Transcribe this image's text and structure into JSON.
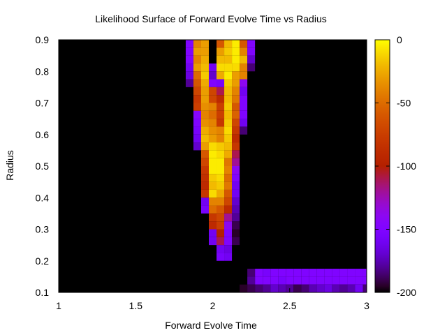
{
  "chart_data": {
    "type": "heatmap",
    "title": "Likelihood Surface of Forward Evolve Time vs Radius",
    "xlabel": "Forward Evolve Time",
    "ylabel": "Radius",
    "xlim": [
      1,
      3
    ],
    "ylim": [
      0.1,
      0.9
    ],
    "xticks": [
      1,
      1.5,
      2,
      2.5,
      3
    ],
    "xtick_labels": [
      "1",
      "1.5",
      "2",
      "2.5",
      "3"
    ],
    "yticks": [
      0.1,
      0.2,
      0.3,
      0.4,
      0.5,
      0.6,
      0.7,
      0.8,
      0.9
    ],
    "ytick_labels": [
      "0.1",
      "0.2",
      "0.3",
      "0.4",
      "0.5",
      "0.6",
      "0.7",
      "0.8",
      "0.9"
    ],
    "colorbar": {
      "range": [
        -200,
        0
      ],
      "ticks": [
        0,
        -50,
        -100,
        -150,
        -200
      ],
      "tick_labels": [
        "0",
        "-50",
        "-100",
        "-150",
        "-200"
      ],
      "palette": "gnuplot-pm3d"
    },
    "grid": false,
    "x_step": 0.05,
    "y_step": 0.025,
    "background_value": -200,
    "nonzero_cells": [
      {
        "x": 1.85,
        "values": [
          null,
          null,
          null,
          null,
          null,
          null,
          null,
          null,
          null,
          null,
          null,
          null,
          null,
          null,
          null,
          null,
          null,
          null,
          null,
          null,
          null,
          null,
          null,
          null,
          null,
          -185,
          -165,
          -162,
          -145,
          -130
        ]
      },
      {
        "x": 1.875,
        "values": [
          null,
          null,
          null,
          null,
          null,
          null,
          null,
          null,
          null,
          null,
          null,
          null,
          null,
          null,
          null,
          null,
          null,
          null,
          -170,
          -160,
          -150,
          null,
          null,
          null,
          null,
          null,
          null,
          null,
          null,
          null
        ]
      },
      {
        "x": 1.9,
        "values": [
          null,
          null,
          null,
          null,
          null,
          null,
          null,
          null,
          null,
          null,
          null,
          null,
          null,
          null,
          null,
          null,
          null,
          null,
          null,
          null,
          null,
          null,
          null,
          null,
          null,
          null,
          null,
          null,
          null,
          null
        ]
      }
    ],
    "z_by_row": [
      {
        "y": 0.8875,
        "x": [
          1.85,
          1.9,
          1.95,
          2.05,
          2.1,
          2.15,
          2.2,
          2.25
        ],
        "z": [
          -150,
          -40,
          -30,
          -60,
          -20,
          -5,
          -60,
          -150
        ]
      },
      {
        "y": 0.8625,
        "x": [
          1.85,
          1.9,
          1.95,
          2.05,
          2.1,
          2.15,
          2.2,
          2.25
        ],
        "z": [
          -150,
          -30,
          -30,
          -30,
          -15,
          -5,
          -40,
          -150
        ]
      },
      {
        "y": 0.8375,
        "x": [
          1.85,
          1.9,
          1.95,
          2.05,
          2.1,
          2.15,
          2.2,
          2.25
        ],
        "z": [
          -150,
          -40,
          -25,
          -20,
          -20,
          -5,
          -20,
          -170
        ]
      },
      {
        "y": 0.8125,
        "x": [
          1.85,
          1.9,
          1.95,
          2.0,
          2.05,
          2.1,
          2.15,
          2.2,
          2.25
        ],
        "z": [
          -160,
          -30,
          -20,
          -160,
          -10,
          -10,
          -10,
          -40,
          -185
        ]
      },
      {
        "y": 0.7875,
        "x": [
          1.85,
          1.9,
          1.95,
          2.0,
          2.05,
          2.1,
          2.15,
          2.2
        ],
        "z": [
          -165,
          -50,
          -15,
          -170,
          -25,
          -5,
          -30,
          -40
        ]
      },
      {
        "y": 0.7625,
        "x": [
          1.85,
          1.9,
          1.95,
          2.0,
          2.05,
          2.1,
          2.15,
          2.2
        ],
        "z": [
          -180,
          -60,
          -25,
          -150,
          -155,
          -15,
          -30,
          -140
        ]
      },
      {
        "y": 0.7375,
        "x": [
          1.9,
          1.95,
          2.0,
          2.05,
          2.1,
          2.15,
          2.2
        ],
        "z": [
          -70,
          -30,
          -70,
          -110,
          -20,
          -40,
          -160
        ]
      },
      {
        "y": 0.7125,
        "x": [
          1.9,
          1.95,
          2.0,
          2.05,
          2.1,
          2.15,
          2.2
        ],
        "z": [
          -80,
          -30,
          -70,
          -90,
          -20,
          -45,
          -150
        ]
      },
      {
        "y": 0.6875,
        "x": [
          1.9,
          1.95,
          2.0,
          2.05,
          2.1,
          2.15,
          2.2
        ],
        "z": [
          -75,
          -35,
          -40,
          -75,
          -15,
          -60,
          -150
        ]
      },
      {
        "y": 0.6625,
        "x": [
          1.9,
          1.95,
          2.0,
          2.05,
          2.1,
          2.15,
          2.2
        ],
        "z": [
          -145,
          -40,
          -50,
          -75,
          -20,
          -55,
          -150
        ]
      },
      {
        "y": 0.6375,
        "x": [
          1.9,
          1.95,
          2.0,
          2.05,
          2.1,
          2.15,
          2.2
        ],
        "z": [
          -150,
          -35,
          -40,
          -80,
          -15,
          -70,
          -160
        ]
      },
      {
        "y": 0.6125,
        "x": [
          1.9,
          1.95,
          2.0,
          2.05,
          2.1,
          2.15,
          2.2
        ],
        "z": [
          -155,
          -25,
          -35,
          -40,
          -10,
          -80,
          -185
        ]
      },
      {
        "y": 0.5875,
        "x": [
          1.9,
          1.95,
          2.0,
          2.05,
          2.1,
          2.15
        ],
        "z": [
          -160,
          -20,
          -30,
          -40,
          -15,
          -90
        ]
      },
      {
        "y": 0.5625,
        "x": [
          1.9,
          1.95,
          2.0,
          2.05,
          2.1,
          2.15
        ],
        "z": [
          -170,
          -30,
          -10,
          -15,
          -20,
          -80
        ]
      },
      {
        "y": 0.5375,
        "x": [
          1.95,
          2.0,
          2.05,
          2.1,
          2.15
        ],
        "z": [
          -60,
          -5,
          -10,
          -25,
          -110
        ]
      },
      {
        "y": 0.5125,
        "x": [
          1.95,
          2.0,
          2.05,
          2.1,
          2.15
        ],
        "z": [
          -70,
          -5,
          -5,
          -45,
          -120
        ]
      },
      {
        "y": 0.4875,
        "x": [
          1.95,
          2.0,
          2.05,
          2.1,
          2.15
        ],
        "z": [
          -80,
          -5,
          -5,
          -40,
          -140
        ]
      },
      {
        "y": 0.4625,
        "x": [
          1.95,
          2.0,
          2.05,
          2.1,
          2.15
        ],
        "z": [
          -85,
          -15,
          -10,
          -50,
          -150
        ]
      },
      {
        "y": 0.4375,
        "x": [
          1.95,
          2.0,
          2.05,
          2.1,
          2.15
        ],
        "z": [
          -90,
          -20,
          -15,
          -45,
          -160
        ]
      },
      {
        "y": 0.4125,
        "x": [
          1.95,
          2.0,
          2.05,
          2.1,
          2.15
        ],
        "z": [
          -80,
          -10,
          -25,
          -60,
          -160
        ]
      },
      {
        "y": 0.3875,
        "x": [
          1.95,
          2.0,
          2.05,
          2.1,
          2.15
        ],
        "z": [
          -160,
          -40,
          -40,
          -70,
          -170
        ]
      },
      {
        "y": 0.3625,
        "x": [
          1.95,
          2.0,
          2.05,
          2.1,
          2.15
        ],
        "z": [
          -155,
          -50,
          -60,
          -90,
          -175
        ]
      },
      {
        "y": 0.3375,
        "x": [
          2.0,
          2.05,
          2.1,
          2.15
        ],
        "z": [
          -80,
          -70,
          -120,
          -180
        ]
      },
      {
        "y": 0.3125,
        "x": [
          2.0,
          2.05,
          2.1,
          2.15
        ],
        "z": [
          -90,
          -75,
          -140,
          -190
        ]
      },
      {
        "y": 0.2875,
        "x": [
          2.0,
          2.05,
          2.1,
          2.15
        ],
        "z": [
          -160,
          -100,
          -150,
          -195
        ]
      },
      {
        "y": 0.2625,
        "x": [
          2.0,
          2.05,
          2.1,
          2.15
        ],
        "z": [
          -160,
          -110,
          -150,
          -190
        ]
      },
      {
        "y": 0.2375,
        "x": [
          2.05,
          2.1
        ],
        "z": [
          -160,
          -165
        ]
      },
      {
        "y": 0.2125,
        "x": [
          2.05,
          2.1
        ],
        "z": [
          -155,
          -160
        ]
      },
      {
        "y": 0.1625,
        "x": [
          2.25,
          2.3,
          2.35,
          2.4,
          2.45,
          2.5,
          2.55,
          2.6,
          2.65,
          2.7,
          2.75,
          2.8,
          2.85,
          2.9,
          2.95,
          3.0
        ],
        "z": [
          -185,
          -150,
          -155,
          -150,
          -150,
          -150,
          -150,
          -150,
          -150,
          -150,
          -150,
          -150,
          -150,
          -150,
          -150,
          -150
        ]
      },
      {
        "y": 0.1375,
        "x": [
          2.25,
          2.3,
          2.35,
          2.4,
          2.45,
          2.5,
          2.55,
          2.6,
          2.65,
          2.7,
          2.75,
          2.8,
          2.85,
          2.9,
          2.95,
          3.0
        ],
        "z": [
          -180,
          -150,
          -150,
          -150,
          -155,
          -150,
          -150,
          -150,
          -150,
          -150,
          -150,
          -150,
          -150,
          -150,
          -150,
          -150
        ]
      },
      {
        "y": 0.1125,
        "x": [
          2.2,
          2.25,
          2.3,
          2.35,
          2.4,
          2.45,
          2.5,
          2.55,
          2.6,
          2.65,
          2.7,
          2.75,
          2.8,
          2.85,
          2.9,
          2.95,
          3.0
        ],
        "z": [
          -195,
          -190,
          -185,
          -180,
          -170,
          -175,
          -180,
          -190,
          -185,
          -175,
          -170,
          -165,
          -175,
          -180,
          -175,
          -160,
          -185
        ]
      }
    ]
  }
}
